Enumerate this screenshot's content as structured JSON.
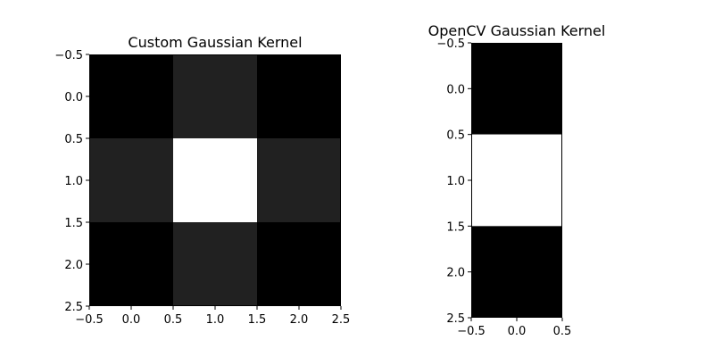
{
  "chart_data": [
    {
      "type": "heatmap",
      "title": "Custom Gaussian Kernel",
      "colormap": "gray",
      "matrix": [
        [
          0.0,
          0.13,
          0.0
        ],
        [
          0.13,
          1.0,
          0.13
        ],
        [
          0.0,
          0.13,
          0.0
        ]
      ],
      "xlim": [
        -0.5,
        2.5
      ],
      "ylim": [
        2.5,
        -0.5
      ],
      "x_ticks": [
        -0.5,
        0.0,
        0.5,
        1.0,
        1.5,
        2.0,
        2.5
      ],
      "y_ticks": [
        -0.5,
        0.0,
        0.5,
        1.0,
        1.5,
        2.0,
        2.5
      ],
      "x_tick_labels": [
        "−0.5",
        "0.0",
        "0.5",
        "1.0",
        "1.5",
        "2.0",
        "2.5"
      ],
      "y_tick_labels": [
        "−0.5",
        "0.0",
        "0.5",
        "1.0",
        "1.5",
        "2.0",
        "2.5"
      ]
    },
    {
      "type": "heatmap",
      "title": "OpenCV Gaussian Kernel",
      "colormap": "gray",
      "matrix": [
        [
          0.0
        ],
        [
          1.0
        ],
        [
          0.0
        ]
      ],
      "xlim": [
        -0.5,
        0.5
      ],
      "ylim": [
        2.5,
        -0.5
      ],
      "x_ticks": [
        -0.5,
        0.0,
        0.5
      ],
      "y_ticks": [
        -0.5,
        0.0,
        0.5,
        1.0,
        1.5,
        2.0,
        2.5
      ],
      "x_tick_labels": [
        "−0.5",
        "0.0",
        "0.5"
      ],
      "y_tick_labels": [
        "−0.5",
        "0.0",
        "0.5",
        "1.0",
        "1.5",
        "2.0",
        "2.5"
      ]
    }
  ]
}
